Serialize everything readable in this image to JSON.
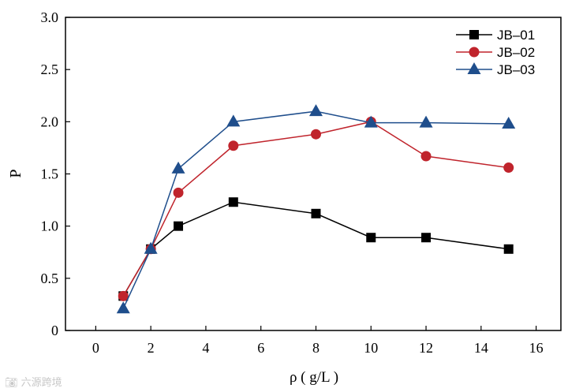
{
  "chart_data": {
    "type": "line",
    "title": "",
    "xlabel": "ρ ( g/L )",
    "ylabel": "P",
    "xlim": [
      -1.1,
      16.9
    ],
    "ylim": [
      0,
      3.0
    ],
    "x_ticks": [
      0,
      2,
      4,
      6,
      8,
      10,
      12,
      14,
      16
    ],
    "y_ticks": [
      0,
      0.5,
      1.0,
      1.5,
      2.0,
      2.5,
      3.0
    ],
    "x_tick_labels": [
      "0",
      "2",
      "4",
      "6",
      "8",
      "10",
      "12",
      "14",
      "16"
    ],
    "y_tick_labels": [
      "0",
      "0.5",
      "1.0",
      "1.5",
      "2.0",
      "2.5",
      "3.0"
    ],
    "grid": false,
    "legend_position": "top-right",
    "x": [
      1,
      2,
      3,
      5,
      8,
      10,
      12,
      15
    ],
    "series": [
      {
        "name": "JB–01",
        "marker": "square",
        "color": "#000000",
        "values": [
          0.33,
          0.78,
          1.0,
          1.23,
          1.12,
          0.89,
          0.89,
          0.78
        ]
      },
      {
        "name": "JB–02",
        "marker": "circle",
        "color": "#c0242c",
        "values": [
          0.33,
          0.78,
          1.32,
          1.77,
          1.88,
          2.0,
          1.67,
          1.56
        ]
      },
      {
        "name": "JB–03",
        "marker": "triangle",
        "color": "#1f4e8c",
        "values": [
          0.21,
          0.78,
          1.55,
          2.0,
          2.1,
          1.99,
          1.99,
          1.98
        ]
      }
    ]
  },
  "watermark": {
    "icon": "camera-icon",
    "text": "六源跨境"
  }
}
